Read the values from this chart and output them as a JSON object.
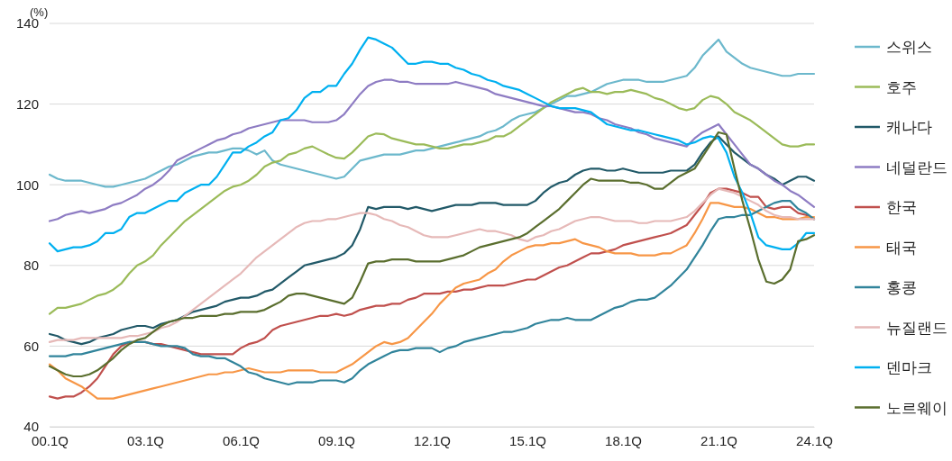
{
  "chart_data": {
    "type": "line",
    "ylabel": "(%)",
    "ylim": [
      40,
      140
    ],
    "categories": [
      "00.1Q",
      null,
      null,
      null,
      null,
      null,
      null,
      null,
      null,
      null,
      null,
      null,
      "03.1Q",
      null,
      null,
      null,
      null,
      null,
      null,
      null,
      null,
      null,
      null,
      null,
      "06.1Q",
      null,
      null,
      null,
      null,
      null,
      null,
      null,
      null,
      null,
      null,
      null,
      "09.1Q",
      null,
      null,
      null,
      null,
      null,
      null,
      null,
      null,
      null,
      null,
      null,
      "12.1Q",
      null,
      null,
      null,
      null,
      null,
      null,
      null,
      null,
      null,
      null,
      null,
      "15.1Q",
      null,
      null,
      null,
      null,
      null,
      null,
      null,
      null,
      null,
      null,
      null,
      "18.1Q",
      null,
      null,
      null,
      null,
      null,
      null,
      null,
      null,
      null,
      null,
      null,
      "21.1Q",
      null,
      null,
      null,
      null,
      null,
      null,
      null,
      null,
      null,
      null,
      null,
      "24.1Q"
    ],
    "yticks": [
      40,
      60,
      80,
      100,
      120,
      140
    ],
    "grid": "y",
    "legend": "right",
    "marker": "none",
    "line_style": "solid",
    "series": [
      {
        "name": "스위스",
        "color": "#6cb8cc",
        "values": [
          102.5,
          101.5,
          101,
          101,
          101,
          100.5,
          100,
          99.5,
          99.5,
          100,
          100.5,
          101,
          101.5,
          102.5,
          103.5,
          104.5,
          105,
          106,
          107,
          107.5,
          108,
          108,
          108.5,
          109,
          109,
          108.5,
          107.5,
          108.5,
          106,
          105,
          104.5,
          104,
          103.5,
          103,
          102.5,
          102,
          101.5,
          102,
          104,
          106,
          106.5,
          107,
          107.5,
          107.5,
          107.5,
          108,
          108.5,
          108.5,
          109,
          109.5,
          110,
          110.5,
          111,
          111.5,
          112,
          113,
          113.5,
          114.5,
          116,
          117,
          117.5,
          118,
          119,
          120,
          121,
          122,
          122,
          122.5,
          123,
          124,
          125,
          125.5,
          126,
          126,
          126,
          125.5,
          125.5,
          125.5,
          126,
          126.5,
          127,
          129,
          132,
          134,
          136,
          133,
          131.5,
          130,
          129,
          128.5,
          128,
          127.5,
          127,
          127,
          127.5,
          127.5,
          127.5
        ]
      },
      {
        "name": "호주",
        "color": "#9bbb59",
        "values": [
          68,
          69.5,
          69.5,
          70,
          70.5,
          71.5,
          72.5,
          73,
          74,
          75.5,
          78,
          80,
          81,
          82.5,
          85,
          87,
          89,
          91,
          92.5,
          94,
          95.5,
          97,
          98.5,
          99.5,
          100,
          101,
          102.5,
          104.5,
          105.5,
          106,
          107.5,
          108,
          109,
          109.5,
          108.5,
          107.5,
          106.7,
          106.5,
          108,
          110,
          112,
          112.7,
          112.5,
          111.5,
          111,
          110.5,
          110,
          110,
          109.5,
          109,
          109,
          109.5,
          110,
          110,
          110.5,
          111,
          112,
          112,
          113,
          114.5,
          116,
          117.5,
          119,
          120.5,
          121.5,
          122.5,
          123.5,
          124,
          123,
          123,
          122.5,
          123,
          123,
          123.5,
          123,
          122.5,
          121.5,
          121,
          120,
          119,
          118.5,
          119,
          121,
          122,
          121.5,
          120,
          118,
          117,
          116,
          114.5,
          113,
          111.5,
          110,
          109.5,
          109.5,
          110,
          110
        ]
      },
      {
        "name": "캐나다",
        "color": "#215968",
        "values": [
          63,
          62.5,
          61.5,
          61,
          60.5,
          61,
          62,
          62.5,
          63,
          64,
          64.5,
          65,
          65,
          64.5,
          65.5,
          66,
          66.5,
          67.5,
          68.5,
          69,
          69.5,
          70,
          71,
          71.5,
          72,
          72,
          72.5,
          73.5,
          74,
          75.5,
          77,
          78.5,
          80,
          80.5,
          81,
          81.5,
          82,
          83,
          85,
          89,
          94.5,
          94,
          94.5,
          94.5,
          94.5,
          94,
          94.5,
          94,
          93.5,
          94,
          94.5,
          95,
          95,
          95,
          95.5,
          95.5,
          95.5,
          95,
          95,
          95,
          95,
          96,
          98,
          99.5,
          100.5,
          101,
          102.5,
          103.5,
          104,
          104,
          103.5,
          103.5,
          104,
          103.5,
          103,
          103,
          103,
          103,
          103.5,
          103.5,
          103.5,
          105,
          108,
          110.5,
          112,
          110,
          108,
          106.5,
          105,
          104,
          102.5,
          101.5,
          100,
          101,
          102,
          102,
          101
        ]
      },
      {
        "name": "네덜란드",
        "color": "#8e7cc3",
        "values": [
          91,
          91.5,
          92.5,
          93,
          93.5,
          93,
          93.5,
          94,
          95,
          95.5,
          96.5,
          97.5,
          99,
          100,
          101.5,
          103.5,
          106,
          107,
          108,
          109,
          110,
          111,
          111.5,
          112.5,
          113,
          114,
          114.5,
          115,
          115.5,
          116,
          116,
          116,
          116,
          115.5,
          115.5,
          115.5,
          116,
          117.5,
          120,
          122.5,
          124.5,
          125.5,
          126,
          126,
          125.5,
          125.5,
          125,
          125,
          125,
          125,
          125,
          125.5,
          125,
          124.5,
          124,
          123.5,
          122.5,
          122,
          121.5,
          121,
          120.5,
          120,
          119.5,
          119.5,
          119,
          118.5,
          118,
          118,
          117.5,
          116.5,
          116,
          115,
          114.5,
          114,
          113,
          112.5,
          111.5,
          111,
          110.5,
          110,
          109.5,
          111.5,
          113,
          114,
          115,
          112.5,
          110,
          107.5,
          105,
          104,
          102.5,
          101,
          100,
          98.5,
          97.5,
          96,
          94.5
        ]
      },
      {
        "name": "한국",
        "color": "#c0504d",
        "values": [
          47.5,
          47,
          47.5,
          47.5,
          48.5,
          50,
          52,
          55,
          58,
          60,
          61,
          61,
          61,
          60.5,
          60.5,
          60,
          59.5,
          59,
          58.5,
          58,
          58,
          58,
          58,
          58,
          59.5,
          60.5,
          61,
          62,
          64,
          65,
          65.5,
          66,
          66.5,
          67,
          67.5,
          67.5,
          68,
          67.5,
          68,
          69,
          69.5,
          70,
          70,
          70.5,
          70.5,
          71.5,
          72,
          73,
          73,
          73,
          73.5,
          73.5,
          74,
          74,
          74.5,
          75,
          75,
          75,
          75.5,
          76,
          76.5,
          76.5,
          77.5,
          78.5,
          79.5,
          80,
          81,
          82,
          83,
          83,
          83.5,
          84,
          85,
          85.5,
          86,
          86.5,
          87,
          87.5,
          88,
          89,
          90,
          92.5,
          95,
          98,
          99,
          99,
          98.5,
          98,
          97,
          97,
          94.5,
          94,
          94.5,
          94.5,
          93,
          92.5,
          91.5
        ]
      },
      {
        "name": "태국",
        "color": "#f79646",
        "values": [
          55.5,
          54,
          52,
          51,
          50,
          48.5,
          47,
          47,
          47,
          47.5,
          48,
          48.5,
          49,
          49.5,
          50,
          50.5,
          51,
          51.5,
          52,
          52.5,
          53,
          53,
          53.5,
          53.5,
          54,
          54.5,
          54,
          53.5,
          53.5,
          53.5,
          54,
          54,
          54,
          54,
          53.5,
          53.5,
          53.5,
          54.5,
          55.5,
          57,
          58.5,
          60,
          61,
          60.5,
          61,
          62,
          64,
          66,
          68,
          70.5,
          72.5,
          74.5,
          75.5,
          76,
          76.5,
          78,
          79,
          81,
          82.5,
          83.5,
          84.5,
          85,
          85,
          85.5,
          85.5,
          86,
          86.5,
          85.5,
          85,
          84.5,
          83.5,
          83,
          83,
          83,
          82.5,
          82.5,
          82.5,
          83,
          83,
          84,
          85,
          88,
          91.5,
          95.5,
          95.5,
          95,
          94.5,
          94.5,
          94,
          93,
          92,
          92,
          91.5,
          91.5,
          91.5,
          92,
          92
        ]
      },
      {
        "name": "홍콩",
        "color": "#31849b",
        "values": [
          57.5,
          57.5,
          57.5,
          58,
          58,
          58.5,
          59,
          59.5,
          60,
          60.5,
          61,
          61,
          61,
          60.5,
          60,
          60,
          60,
          59.5,
          58,
          57.5,
          57.5,
          57,
          57,
          56,
          55,
          53.5,
          53,
          52,
          51.5,
          51,
          50.5,
          51,
          51,
          51,
          51.5,
          51.5,
          51.5,
          51,
          52,
          54,
          55.5,
          56.5,
          57.5,
          58.5,
          59,
          59,
          59.5,
          59.5,
          59.5,
          58.5,
          59.5,
          60,
          61,
          61.5,
          62,
          62.5,
          63,
          63.5,
          63.5,
          64,
          64.5,
          65.5,
          66,
          66.5,
          66.5,
          67,
          66.5,
          66.5,
          66.5,
          67.5,
          68.5,
          69.5,
          70,
          71,
          71.5,
          71.5,
          72,
          73.5,
          75,
          77,
          79,
          82,
          85,
          88.5,
          91.5,
          92,
          92,
          92.5,
          92.5,
          93.5,
          94.5,
          95.5,
          96,
          96,
          94,
          93,
          91.5
        ]
      },
      {
        "name": "뉴질랜드",
        "color": "#e6b9b8",
        "values": [
          61,
          61.5,
          61.5,
          61.5,
          62,
          62,
          62,
          62,
          62,
          62,
          62.5,
          62.5,
          63,
          63.5,
          64.5,
          65,
          66,
          67.5,
          69,
          70.5,
          72,
          73.5,
          75,
          76.5,
          78,
          80,
          82,
          83.5,
          85,
          86.5,
          88,
          89.5,
          90.5,
          91,
          91,
          91.5,
          91.5,
          92,
          92.5,
          93,
          93,
          92.5,
          91.5,
          91,
          90,
          89.5,
          88.5,
          87.5,
          87,
          87,
          87,
          87.5,
          88,
          88.5,
          89,
          88.5,
          88.5,
          88,
          87.5,
          86.5,
          86,
          87,
          87.5,
          88.5,
          89,
          90,
          91,
          91.5,
          92,
          92,
          91.5,
          91,
          91,
          91,
          90.5,
          90.5,
          91,
          91,
          91,
          91.5,
          92,
          93.5,
          95.5,
          97.5,
          99,
          98.5,
          98,
          97,
          96,
          95,
          93.5,
          92.5,
          92,
          92,
          91.5,
          91.5,
          91.5
        ]
      },
      {
        "name": "덴마크",
        "color": "#00b0f0",
        "values": [
          85.5,
          83.5,
          84,
          84.5,
          84.5,
          85,
          86,
          88,
          88,
          89,
          92,
          93,
          93,
          94,
          95,
          96,
          96,
          98,
          99,
          100,
          100,
          102,
          105,
          108,
          108,
          109.5,
          110.5,
          112,
          113,
          116,
          116.5,
          118.5,
          121.5,
          123,
          123,
          124.5,
          124.5,
          127.5,
          130,
          133.5,
          136.5,
          136,
          135,
          134,
          132,
          130,
          130,
          130.5,
          130.5,
          130,
          130,
          129,
          128.5,
          127.5,
          127,
          126,
          125.5,
          124.5,
          124,
          123.5,
          122.5,
          121.5,
          120.5,
          119.5,
          119,
          119,
          119,
          118.5,
          118,
          116.5,
          115,
          114.5,
          114,
          113.5,
          113.5,
          113,
          112.5,
          112,
          111.5,
          111,
          110,
          110.5,
          111.5,
          112,
          111.5,
          108,
          102,
          98,
          93,
          87,
          85,
          84.5,
          84,
          84,
          85.5,
          88,
          88
        ]
      },
      {
        "name": "노르웨이",
        "color": "#5a6e2e",
        "values": [
          55,
          54,
          53,
          52.5,
          52.5,
          53,
          54,
          55.5,
          57,
          59,
          60.5,
          61.5,
          62,
          63.5,
          65,
          66,
          66.5,
          67,
          67,
          67.5,
          67.5,
          67.5,
          68,
          68,
          68.5,
          68.5,
          68.5,
          69,
          70,
          71,
          72.5,
          73,
          73,
          72.5,
          72,
          71.5,
          71,
          70.5,
          72,
          76,
          80.5,
          81,
          81,
          81.5,
          81.5,
          81.5,
          81,
          81,
          81,
          81,
          81.5,
          82,
          82.5,
          83.5,
          84.5,
          85,
          85.5,
          86,
          86.5,
          87,
          88,
          89.5,
          91,
          92.5,
          94,
          96,
          98,
          100,
          101.5,
          101,
          101,
          101,
          101,
          100.5,
          100.5,
          100,
          99,
          99,
          100.5,
          102,
          103,
          104,
          107,
          110,
          113,
          112.5,
          104,
          96,
          89,
          81.5,
          76,
          75.5,
          76.5,
          79,
          86,
          86.5,
          87.5
        ]
      }
    ]
  }
}
